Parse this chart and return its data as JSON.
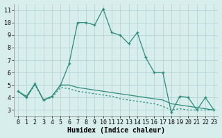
{
  "xlabel": "Humidex (Indice chaleur)",
  "x_ticks": [
    0,
    1,
    2,
    3,
    4,
    5,
    6,
    7,
    8,
    9,
    10,
    11,
    12,
    13,
    14,
    15,
    16,
    17,
    18,
    19,
    20,
    21,
    22,
    23
  ],
  "ylim": [
    2.5,
    11.5
  ],
  "xlim": [
    -0.5,
    23.5
  ],
  "yticks": [
    3,
    4,
    5,
    6,
    7,
    8,
    9,
    10,
    11
  ],
  "line1_x": [
    0,
    1,
    2,
    3,
    4,
    5,
    6,
    7,
    8,
    9,
    10,
    11,
    12,
    13,
    14,
    15,
    16,
    17,
    18,
    19,
    20,
    21,
    22,
    23
  ],
  "line1_y": [
    4.5,
    4.0,
    5.1,
    3.8,
    4.1,
    5.0,
    6.7,
    10.0,
    10.0,
    9.8,
    11.1,
    9.2,
    9.0,
    8.3,
    9.2,
    7.2,
    6.0,
    6.0,
    2.8,
    4.1,
    4.0,
    3.0,
    4.0,
    3.0
  ],
  "line2_x": [
    0,
    1,
    2,
    3,
    4,
    5,
    6,
    7,
    8,
    9,
    10,
    11,
    12,
    13,
    14,
    15,
    16,
    17,
    18,
    19,
    20,
    21,
    22,
    23
  ],
  "line2_y": [
    4.5,
    4.1,
    5.1,
    3.8,
    4.1,
    5.0,
    5.0,
    4.8,
    4.7,
    4.6,
    4.5,
    4.4,
    4.3,
    4.2,
    4.1,
    4.0,
    3.9,
    3.8,
    3.5,
    3.4,
    3.3,
    3.2,
    3.1,
    3.0
  ],
  "line3_x": [
    0,
    1,
    2,
    3,
    4,
    5,
    6,
    7,
    8,
    9,
    10,
    11,
    12,
    13,
    14,
    15,
    16,
    17,
    18,
    19,
    20,
    21,
    22,
    23
  ],
  "line3_y": [
    4.5,
    4.0,
    5.0,
    3.8,
    4.0,
    4.8,
    4.7,
    4.5,
    4.4,
    4.3,
    4.2,
    4.1,
    3.9,
    3.8,
    3.7,
    3.6,
    3.5,
    3.3,
    3.0,
    3.1,
    3.0,
    3.0,
    3.0,
    3.0
  ],
  "line_color": "#2e8b7a",
  "bg_color": "#d7eeed",
  "grid_color": "#b0cece",
  "label_fontsize": 7,
  "tick_fontsize": 6
}
